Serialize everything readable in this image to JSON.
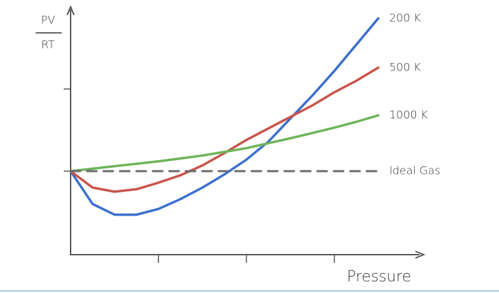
{
  "chart_data": {
    "type": "line",
    "y_label_top": "PV",
    "y_label_bottom": "RT",
    "x_label": "Pressure",
    "x": [
      0,
      0.25,
      0.5,
      0.75,
      1.0,
      1.25,
      1.5,
      1.75,
      2.0,
      2.25,
      2.5,
      2.75,
      3.0,
      3.25,
      3.5
    ],
    "xlim": [
      0,
      4
    ],
    "ylim": [
      0.5,
      2.0
    ],
    "xticks": [
      1,
      2,
      3
    ],
    "yticks": [
      1,
      1.5
    ],
    "series": [
      {
        "name": "200 K",
        "color": "#3a6fcc",
        "dashed": false,
        "values": [
          1.0,
          0.8,
          0.735,
          0.735,
          0.77,
          0.83,
          0.9,
          0.98,
          1.07,
          1.18,
          1.32,
          1.46,
          1.61,
          1.77,
          1.93
        ]
      },
      {
        "name": "500 K",
        "color": "#c9544a",
        "dashed": false,
        "values": [
          1.0,
          0.9,
          0.875,
          0.89,
          0.93,
          0.975,
          1.035,
          1.11,
          1.19,
          1.26,
          1.33,
          1.4,
          1.48,
          1.55,
          1.63
        ]
      },
      {
        "name": "1000 K",
        "color": "#6db45a",
        "dashed": false,
        "values": [
          1.0,
          1.015,
          1.03,
          1.045,
          1.06,
          1.077,
          1.095,
          1.117,
          1.14,
          1.17,
          1.2,
          1.232,
          1.265,
          1.3,
          1.34
        ]
      },
      {
        "name": "Ideal Gas",
        "color": "#6b6b6b",
        "dashed": true,
        "values": [
          1.0,
          1.0,
          1.0,
          1.0,
          1.0,
          1.0,
          1.0,
          1.0,
          1.0,
          1.0,
          1.0,
          1.0,
          1.0,
          1.0,
          1.0
        ]
      }
    ]
  }
}
